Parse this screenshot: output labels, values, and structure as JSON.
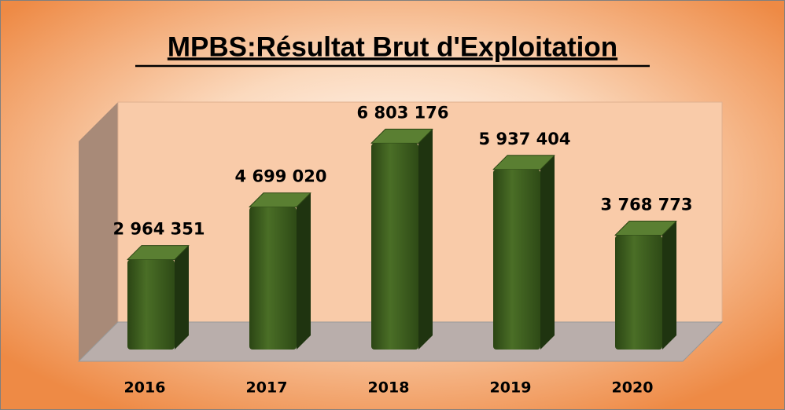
{
  "chart_data": {
    "type": "bar3d",
    "title": "MPBS:Résultat Brut d'Exploitation",
    "categories": [
      "2016",
      "2017",
      "2018",
      "2019",
      "2020"
    ],
    "values": [
      2964351,
      4699020,
      6803176,
      5937404,
      3768773
    ],
    "value_labels": [
      "2 964 351",
      "4 699 020",
      "6 803 176",
      "5 937 404",
      "3 768 773"
    ],
    "color": "#3a5a1c"
  }
}
